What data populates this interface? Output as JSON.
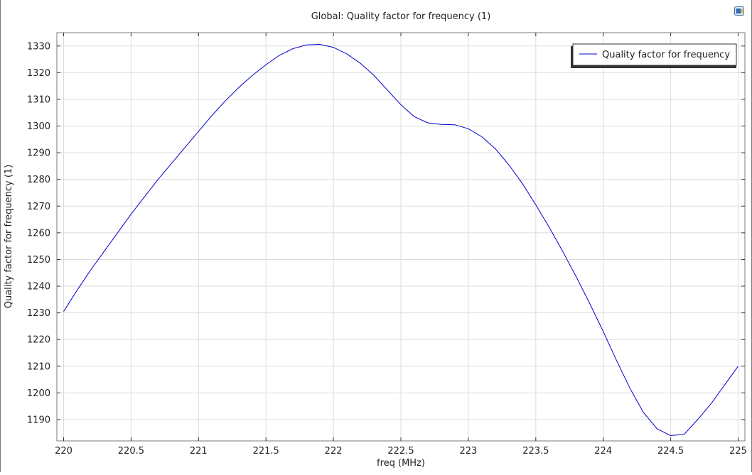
{
  "chart_data": {
    "type": "line",
    "title": "Global: Quality factor for frequency (1)",
    "xlabel": "freq (MHz)",
    "ylabel": "Quality factor for frequency (1)",
    "xlim": [
      219.95,
      225.05
    ],
    "ylim": [
      1182,
      1335
    ],
    "grid": true,
    "legend_position": "top-right",
    "x_ticks": [
      220,
      220.5,
      221,
      221.5,
      222,
      222.5,
      223,
      223.5,
      224,
      224.5,
      225
    ],
    "x_tick_labels": [
      "220",
      "220.5",
      "221",
      "221.5",
      "222",
      "222.5",
      "223",
      "223.5",
      "224",
      "224.5",
      "225"
    ],
    "y_ticks": [
      1190,
      1200,
      1210,
      1220,
      1230,
      1240,
      1250,
      1260,
      1270,
      1280,
      1290,
      1300,
      1310,
      1320,
      1330
    ],
    "y_tick_labels": [
      "1190",
      "1200",
      "1210",
      "1220",
      "1230",
      "1240",
      "1250",
      "1260",
      "1270",
      "1280",
      "1290",
      "1300",
      "1310",
      "1320",
      "1330"
    ],
    "series": [
      {
        "name": "Quality factor for frequency",
        "color": "#0000cc",
        "x": [
          220,
          220.1,
          220.2,
          220.3,
          220.4,
          220.5,
          220.6,
          220.7,
          220.8,
          220.9,
          221,
          221.1,
          221.2,
          221.3,
          221.4,
          221.5,
          221.6,
          221.7,
          221.8,
          221.9,
          222,
          222.1,
          222.2,
          222.3,
          222.4,
          222.5,
          222.6,
          222.7,
          222.8,
          222.9,
          223,
          223.1,
          223.2,
          223.3,
          223.4,
          223.5,
          223.6,
          223.7,
          223.8,
          223.9,
          224,
          224.1,
          224.2,
          224.3,
          224.4,
          224.5,
          224.6,
          224.7,
          224.8,
          224.9,
          225
        ],
        "y": [
          1230.5,
          1238.5,
          1246,
          1253,
          1260,
          1267,
          1273.5,
          1280,
          1286,
          1292,
          1298,
          1304,
          1309.5,
          1314.5,
          1319,
          1323,
          1326.5,
          1329,
          1330.4,
          1330.6,
          1329.5,
          1327,
          1323.5,
          1319,
          1313.5,
          1308,
          1303.5,
          1301.2,
          1300.6,
          1300.5,
          1299,
          1296,
          1291.5,
          1285.5,
          1278.5,
          1270.5,
          1262,
          1253,
          1243.5,
          1233.5,
          1223,
          1212,
          1201.5,
          1192.5,
          1186.5,
          1184,
          1184.5,
          1190,
          1196,
          1203,
          1210
        ]
      }
    ]
  }
}
